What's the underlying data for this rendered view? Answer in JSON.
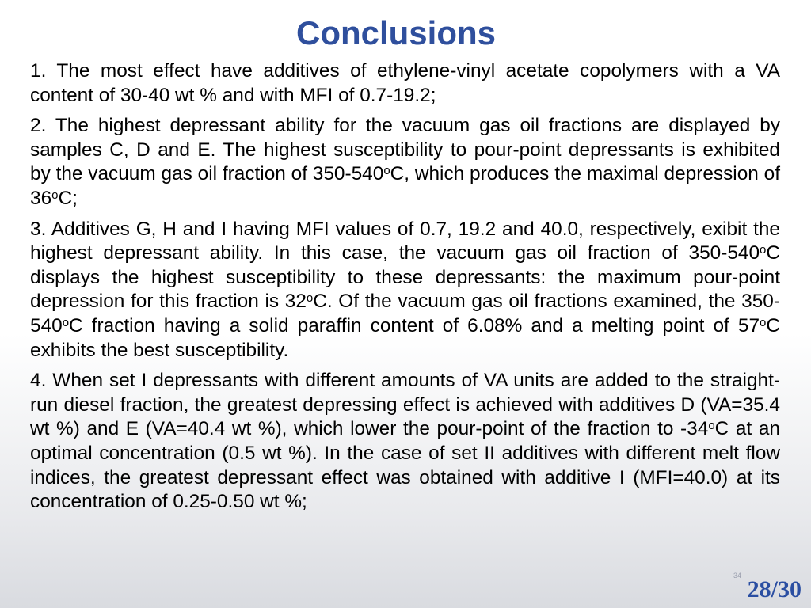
{
  "slide": {
    "title": "Conclusions",
    "paragraphs": [
      [
        {
          "t": "1.  The most effect have additives of ethylene-vinyl acetate copolymers with  a VA content of 30-40 wt % and with MFI of 0.7-19.2;"
        }
      ],
      [
        {
          "t": "2.  The highest depressant ability for the vacuum gas oil fractions are displayed by samples C, D and E. The highest susceptibility to pour-point depressants is exhibited by the vacuum gas oil fraction of 350-540"
        },
        {
          "t": "o",
          "sup": true
        },
        {
          "t": "C, which produces the maximal depression of 36"
        },
        {
          "t": "o",
          "sup": true
        },
        {
          "t": "C;"
        }
      ],
      [
        {
          "t": "3. Additives G, H and I having MFI values of 0.7, 19.2 and 40.0, respectively, exibit the highest depressant ability. In this case, the vacuum gas oil fraction of 350-540"
        },
        {
          "t": "o",
          "sup": true
        },
        {
          "t": "C displays the highest susceptibility to these depressants: the maximum pour-point depression for this fraction is 32"
        },
        {
          "t": "o",
          "sup": true
        },
        {
          "t": "C. Of the vacuum gas oil fractions examined, the 350-540"
        },
        {
          "t": "o",
          "sup": true
        },
        {
          "t": "C fraction having a solid paraffin content of 6.08% and a melting point of 57"
        },
        {
          "t": "o",
          "sup": true
        },
        {
          "t": "C exhibits the best susceptibility."
        }
      ],
      [
        {
          "t": "4.  When set I depressants with different amounts of VA units are added to the straight-run diesel fraction, the greatest depressing effect is achieved with additives D (VA=35.4 wt %) and E (VA=40.4 wt %), which lower the pour-point of the fraction to -34"
        },
        {
          "t": "o",
          "sup": true
        },
        {
          "t": "C at an optimal concentration (0.5 wt %). In the case of set II additives with different melt flow indices, the greatest depressant effect was obtained with additive I (MFI=40.0) at its concentration of 0.25-0.50 wt %;"
        }
      ]
    ],
    "slide_small_number": "34",
    "page_number": "28/30"
  },
  "colors": {
    "title": "#2f4f9d",
    "page_number": "#2a4ea2",
    "body_text": "#000000"
  }
}
